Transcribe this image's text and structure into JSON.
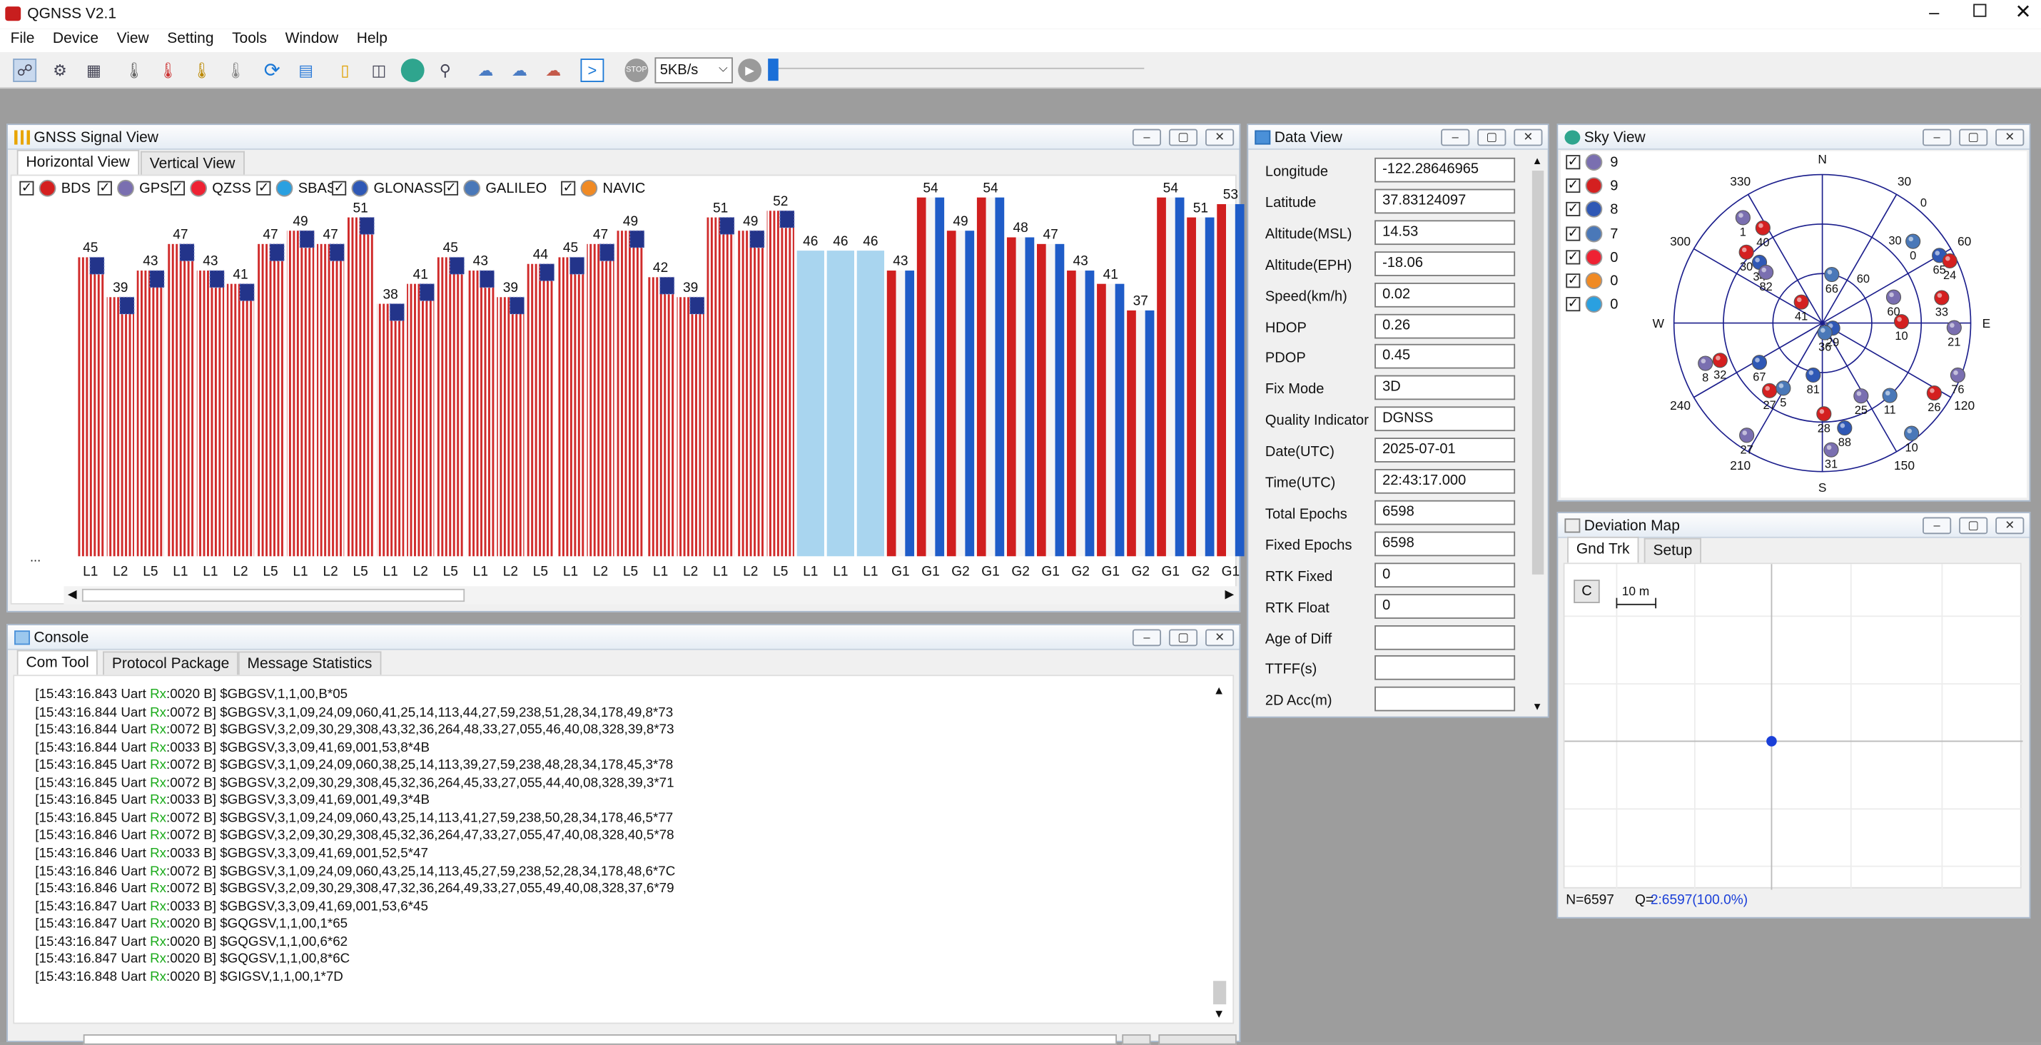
{
  "app": {
    "title": "QGNSS V2.1"
  },
  "menu": [
    "File",
    "Device",
    "View",
    "Setting",
    "Tools",
    "Window",
    "Help"
  ],
  "toolbar": {
    "baud": "5KB/s"
  },
  "signal_view": {
    "title": "GNSS Signal View",
    "tabs": [
      "Horizontal View",
      "Vertical View"
    ],
    "filters": [
      {
        "label": "BDS",
        "color": "#d42020"
      },
      {
        "label": "GPS",
        "color": "#7a6fb0"
      },
      {
        "label": "QZSS",
        "color": "#ee2233"
      },
      {
        "label": "SBAS",
        "color": "#2aa0e0"
      },
      {
        "label": "GLONASS",
        "color": "#2f58b5"
      },
      {
        "label": "GALILEO",
        "color": "#4a78b8"
      },
      {
        "label": "NAVIC",
        "color": "#f08a24"
      }
    ],
    "ellipsis": "...",
    "chart_data": {
      "type": "bar",
      "ylim": [
        0,
        60
      ],
      "bars": [
        {
          "band": "L1",
          "value": 45,
          "kind": "gps"
        },
        {
          "band": "L2",
          "value": 39,
          "kind": "gps"
        },
        {
          "band": "L5",
          "value": 43,
          "kind": "gps"
        },
        {
          "band": "L1",
          "value": 47,
          "kind": "gps"
        },
        {
          "band": "L1",
          "value": 43,
          "kind": "gps"
        },
        {
          "band": "L2",
          "value": 41,
          "kind": "gps"
        },
        {
          "band": "L5",
          "value": 47,
          "kind": "gps"
        },
        {
          "band": "L1",
          "value": 49,
          "kind": "gps"
        },
        {
          "band": "L2",
          "value": 47,
          "kind": "gps"
        },
        {
          "band": "L5",
          "value": 51,
          "kind": "gps"
        },
        {
          "band": "L1",
          "value": 38,
          "kind": "gps"
        },
        {
          "band": "L2",
          "value": 41,
          "kind": "gps"
        },
        {
          "band": "L5",
          "value": 45,
          "kind": "gps"
        },
        {
          "band": "L1",
          "value": 43,
          "kind": "gps"
        },
        {
          "band": "L2",
          "value": 39,
          "kind": "gps"
        },
        {
          "band": "L5",
          "value": 44,
          "kind": "gps"
        },
        {
          "band": "L1",
          "value": 45,
          "kind": "gps"
        },
        {
          "band": "L2",
          "value": 47,
          "kind": "gps"
        },
        {
          "band": "L5",
          "value": 49,
          "kind": "gps"
        },
        {
          "band": "L1",
          "value": 42,
          "kind": "gps"
        },
        {
          "band": "L2",
          "value": 39,
          "kind": "gps"
        },
        {
          "band": "L1",
          "value": 51,
          "kind": "gps"
        },
        {
          "band": "L2",
          "value": 49,
          "kind": "gps"
        },
        {
          "band": "L5",
          "value": 52,
          "kind": "gps"
        },
        {
          "band": "L1",
          "value": 46,
          "kind": "sbas"
        },
        {
          "band": "L1",
          "value": 46,
          "kind": "sbas"
        },
        {
          "band": "L1",
          "value": 46,
          "kind": "sbas"
        },
        {
          "band": "G1",
          "value": 43,
          "kind": "glo"
        },
        {
          "band": "G1",
          "value": 54,
          "kind": "glo"
        },
        {
          "band": "G2",
          "value": 49,
          "kind": "glo"
        },
        {
          "band": "G1",
          "value": 54,
          "kind": "glo"
        },
        {
          "band": "G2",
          "value": 48,
          "kind": "glo"
        },
        {
          "band": "G1",
          "value": 47,
          "kind": "glo"
        },
        {
          "band": "G2",
          "value": 43,
          "kind": "glo"
        },
        {
          "band": "G1",
          "value": 41,
          "kind": "glo"
        },
        {
          "band": "G2",
          "value": 37,
          "kind": "glo"
        },
        {
          "band": "G1",
          "value": 54,
          "kind": "glo"
        },
        {
          "band": "G2",
          "value": 51,
          "kind": "glo"
        },
        {
          "band": "G1",
          "value": 53,
          "kind": "glo"
        }
      ]
    }
  },
  "data_view": {
    "title": "Data View",
    "rows": [
      {
        "label": "Longitude",
        "value": "-122.28646965"
      },
      {
        "label": "Latitude",
        "value": "37.83124097"
      },
      {
        "label": "Altitude(MSL)",
        "value": "14.53"
      },
      {
        "label": "Altitude(EPH)",
        "value": "-18.06"
      },
      {
        "label": "Speed(km/h)",
        "value": "0.02"
      },
      {
        "label": "HDOP",
        "value": "0.26"
      },
      {
        "label": "PDOP",
        "value": "0.45"
      },
      {
        "label": "Fix Mode",
        "value": "3D"
      },
      {
        "label": "Quality Indicator",
        "value": "DGNSS"
      },
      {
        "label": "Date(UTC)",
        "value": "2025-07-01"
      },
      {
        "label": "Time(UTC)",
        "value": "22:43:17.000"
      },
      {
        "label": "Total Epochs",
        "value": "6598"
      },
      {
        "label": "Fixed Epochs",
        "value": "6598"
      },
      {
        "label": "RTK Fixed",
        "value": "0"
      },
      {
        "label": "RTK Float",
        "value": "0"
      },
      {
        "label": "Age of Diff",
        "value": ""
      },
      {
        "label": "TTFF(s)",
        "value": ""
      },
      {
        "label": "2D Acc(m)",
        "value": ""
      }
    ]
  },
  "sky_view": {
    "title": "Sky View",
    "counts": [
      {
        "count": "9",
        "color": "#7a6fb0"
      },
      {
        "count": "9",
        "color": "#d42020"
      },
      {
        "count": "8",
        "color": "#2f58b5"
      },
      {
        "count": "7",
        "color": "#4a78b8"
      },
      {
        "count": "0",
        "color": "#ee2233"
      },
      {
        "count": "0",
        "color": "#f08a24"
      },
      {
        "count": "0",
        "color": "#2aa0e0"
      }
    ],
    "azimuth_labels": [
      "N",
      "30",
      "60",
      "E",
      "120",
      "150",
      "S",
      "210",
      "240",
      "W",
      "300",
      "330"
    ],
    "ring_labels": [
      "0",
      "30",
      "60"
    ],
    "chart_data": {
      "type": "scatter",
      "sats": [
        {
          "id": "40",
          "az": 328,
          "el": 22,
          "c": "#d42020"
        },
        {
          "id": "30",
          "az": 313,
          "el": 27,
          "c": "#d42020"
        },
        {
          "id": "34",
          "az": 314,
          "el": 37,
          "c": "#2f58b5"
        },
        {
          "id": "82",
          "az": 312,
          "el": 44,
          "c": "#7a6fb0"
        },
        {
          "id": "66",
          "az": 11,
          "el": 60,
          "c": "#4a78b8"
        },
        {
          "id": "60",
          "az": 70,
          "el": 44,
          "c": "#7a6fb0"
        },
        {
          "id": "10",
          "az": 89,
          "el": 42,
          "c": "#d42020"
        },
        {
          "id": "41",
          "az": 315,
          "el": 72,
          "c": "#d42020"
        },
        {
          "id": "29",
          "az": 116,
          "el": 83,
          "c": "#2f58b5"
        },
        {
          "id": "36",
          "az": 165,
          "el": 84,
          "c": "#4a78b8"
        },
        {
          "id": "65",
          "az": 60,
          "el": 8,
          "c": "#2f58b5"
        },
        {
          "id": "33",
          "az": 78,
          "el": 16,
          "c": "#d42020"
        },
        {
          "id": "24",
          "az": 64,
          "el": 4,
          "c": "#d42020"
        },
        {
          "id": "67",
          "az": 238,
          "el": 45,
          "c": "#2f58b5"
        },
        {
          "id": "32",
          "az": 250,
          "el": 24,
          "c": "#d42020"
        },
        {
          "id": "8",
          "az": 251,
          "el": 15,
          "c": "#7a6fb0"
        },
        {
          "id": "27",
          "az": 218,
          "el": 38,
          "c": "#d42020"
        },
        {
          "id": "5",
          "az": 211,
          "el": 44,
          "c": "#4a78b8"
        },
        {
          "id": "81",
          "az": 190,
          "el": 58,
          "c": "#2f58b5"
        },
        {
          "id": "21",
          "az": 92,
          "el": 10,
          "c": "#7a6fb0"
        },
        {
          "id": "76",
          "az": 111,
          "el": 2,
          "c": "#7a6fb0"
        },
        {
          "id": "26",
          "az": 122,
          "el": 10,
          "c": "#d42020"
        },
        {
          "id": "11",
          "az": 137,
          "el": 30,
          "c": "#4a78b8"
        },
        {
          "id": "25",
          "az": 152,
          "el": 40,
          "c": "#7a6fb0"
        },
        {
          "id": "10",
          "az": 141,
          "el": 4,
          "c": "#4a78b8"
        },
        {
          "id": "28",
          "az": 179,
          "el": 35,
          "c": "#d42020"
        },
        {
          "id": "88",
          "az": 168,
          "el": 25,
          "c": "#2f58b5"
        },
        {
          "id": "31",
          "az": 176,
          "el": 13,
          "c": "#7a6fb0"
        },
        {
          "id": "27",
          "az": 214,
          "el": 8,
          "c": "#7a6fb0"
        },
        {
          "id": "1",
          "az": 323,
          "el": 10,
          "c": "#7a6fb0"
        },
        {
          "id": "0",
          "az": 48,
          "el": 16,
          "c": "#4a78b8"
        }
      ]
    }
  },
  "deviation_map": {
    "title": "Deviation Map",
    "tabs": [
      "Gnd Trk",
      "Setup"
    ],
    "clear_label": "C",
    "scale_label": "10 m",
    "status_n": "N=6597",
    "status_q_prefix": "Q=",
    "status_q": "2:6597(100.0%)"
  },
  "console": {
    "title": "Console",
    "tabs": [
      "Com Tool",
      "Protocol Package",
      "Message Statistics"
    ],
    "lines": [
      {
        "pre": "[15:43:16.843 Uart ",
        "rx": "Rx",
        "post": ":0020 B] $GBGSV,1,1,00,B*05"
      },
      {
        "pre": "[15:43:16.844 Uart ",
        "rx": "Rx",
        "post": ":0072 B] $GBGSV,3,1,09,24,09,060,41,25,14,113,44,27,59,238,51,28,34,178,49,8*73"
      },
      {
        "pre": "[15:43:16.844 Uart ",
        "rx": "Rx",
        "post": ":0072 B] $GBGSV,3,2,09,30,29,308,43,32,36,264,48,33,27,055,46,40,08,328,39,8*73"
      },
      {
        "pre": "[15:43:16.844 Uart ",
        "rx": "Rx",
        "post": ":0033 B] $GBGSV,3,3,09,41,69,001,53,8*4B"
      },
      {
        "pre": "[15:43:16.845 Uart ",
        "rx": "Rx",
        "post": ":0072 B] $GBGSV,3,1,09,24,09,060,38,25,14,113,39,27,59,238,48,28,34,178,45,3*78"
      },
      {
        "pre": "[15:43:16.845 Uart ",
        "rx": "Rx",
        "post": ":0072 B] $GBGSV,3,2,09,30,29,308,45,32,36,264,45,33,27,055,44,40,08,328,39,3*71"
      },
      {
        "pre": "[15:43:16.845 Uart ",
        "rx": "Rx",
        "post": ":0033 B] $GBGSV,3,3,09,41,69,001,49,3*4B"
      },
      {
        "pre": "[15:43:16.845 Uart ",
        "rx": "Rx",
        "post": ":0072 B] $GBGSV,3,1,09,24,09,060,43,25,14,113,41,27,59,238,50,28,34,178,46,5*77"
      },
      {
        "pre": "[15:43:16.846 Uart ",
        "rx": "Rx",
        "post": ":0072 B] $GBGSV,3,2,09,30,29,308,45,32,36,264,47,33,27,055,47,40,08,328,40,5*78"
      },
      {
        "pre": "[15:43:16.846 Uart ",
        "rx": "Rx",
        "post": ":0033 B] $GBGSV,3,3,09,41,69,001,52,5*47"
      },
      {
        "pre": "[15:43:16.846 Uart ",
        "rx": "Rx",
        "post": ":0072 B] $GBGSV,3,1,09,24,09,060,43,25,14,113,45,27,59,238,52,28,34,178,48,6*7C"
      },
      {
        "pre": "[15:43:16.846 Uart ",
        "rx": "Rx",
        "post": ":0072 B] $GBGSV,3,2,09,30,29,308,47,32,36,264,49,33,27,055,49,40,08,328,37,6*79"
      },
      {
        "pre": "[15:43:16.847 Uart ",
        "rx": "Rx",
        "post": ":0033 B] $GBGSV,3,3,09,41,69,001,53,6*45"
      },
      {
        "pre": "[15:43:16.847 Uart ",
        "rx": "Rx",
        "post": ":0020 B] $GQGSV,1,1,00,1*65"
      },
      {
        "pre": "[15:43:16.847 Uart ",
        "rx": "Rx",
        "post": ":0020 B] $GQGSV,1,1,00,6*62"
      },
      {
        "pre": "[15:43:16.847 Uart ",
        "rx": "Rx",
        "post": ":0020 B] $GQGSV,1,1,00,8*6C"
      },
      {
        "pre": "[15:43:16.848 Uart ",
        "rx": "Rx",
        "post": ":0020 B] $GIGSV,1,1,00,1*7D"
      }
    ]
  }
}
